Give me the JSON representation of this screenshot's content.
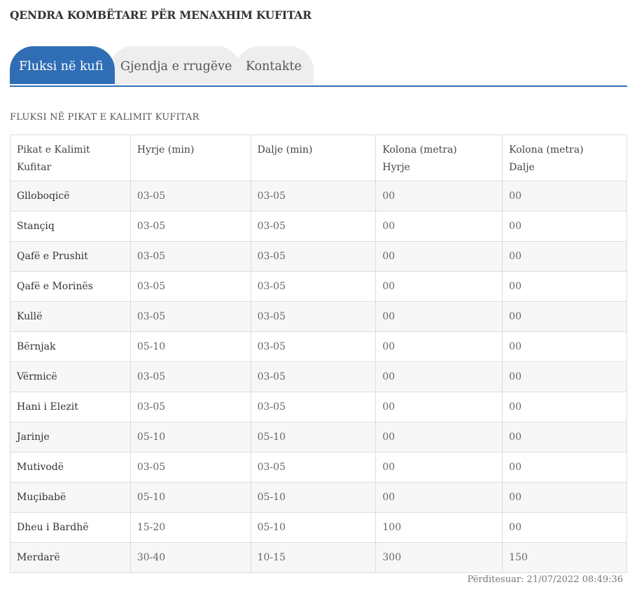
{
  "page_title": "QENDRA KOMBËTARE PËR MENAXHIM KUFITAR",
  "tabs": [
    {
      "label": "Fluksi në kufi",
      "active": true
    },
    {
      "label": "Gjendja e rrugëve",
      "active": false
    },
    {
      "label": "Kontakte",
      "active": false
    }
  ],
  "section_title": "FLUKSI NË PIKAT E KALIMIT KUFITAR",
  "table": {
    "headers": [
      [
        "Pikat e Kalimit",
        "Kufitar"
      ],
      [
        "Hyrje (min)"
      ],
      [
        "Dalje (min)"
      ],
      [
        "Kolona (metra)",
        "Hyrje"
      ],
      [
        "Kolona (metra)",
        "Dalje"
      ]
    ],
    "rows": [
      [
        "Glloboqicë",
        "03-05",
        "03-05",
        "00",
        "00"
      ],
      [
        "Stançiq",
        "03-05",
        "03-05",
        "00",
        "00"
      ],
      [
        "Qafë e Prushit",
        "03-05",
        "03-05",
        "00",
        "00"
      ],
      [
        "Qafë e Morinës",
        "03-05",
        "03-05",
        "00",
        "00"
      ],
      [
        "Kullë",
        "03-05",
        "03-05",
        "00",
        "00"
      ],
      [
        "Bërnjak",
        "05-10",
        "03-05",
        "00",
        "00"
      ],
      [
        "Vërmicë",
        "03-05",
        "03-05",
        "00",
        "00"
      ],
      [
        "Hani i Elezit",
        "03-05",
        "03-05",
        "00",
        "00"
      ],
      [
        "Jarinje",
        "05-10",
        "05-10",
        "00",
        "00"
      ],
      [
        "Mutivodë",
        "03-05",
        "03-05",
        "00",
        "00"
      ],
      [
        "Muçibabë",
        "05-10",
        "05-10",
        "00",
        "00"
      ],
      [
        "Dheu i Bardhë",
        "15-20",
        "05-10",
        "100",
        "00"
      ],
      [
        "Merdarë",
        "30-40",
        "10-15",
        "300",
        "150"
      ]
    ]
  },
  "updated": "Përditesuar: 21/07/2022 08:49:36",
  "colors": {
    "accent": "#2f6eb5",
    "tab_inactive": "#eeeeee",
    "row_stripe": "#f7f7f7"
  }
}
